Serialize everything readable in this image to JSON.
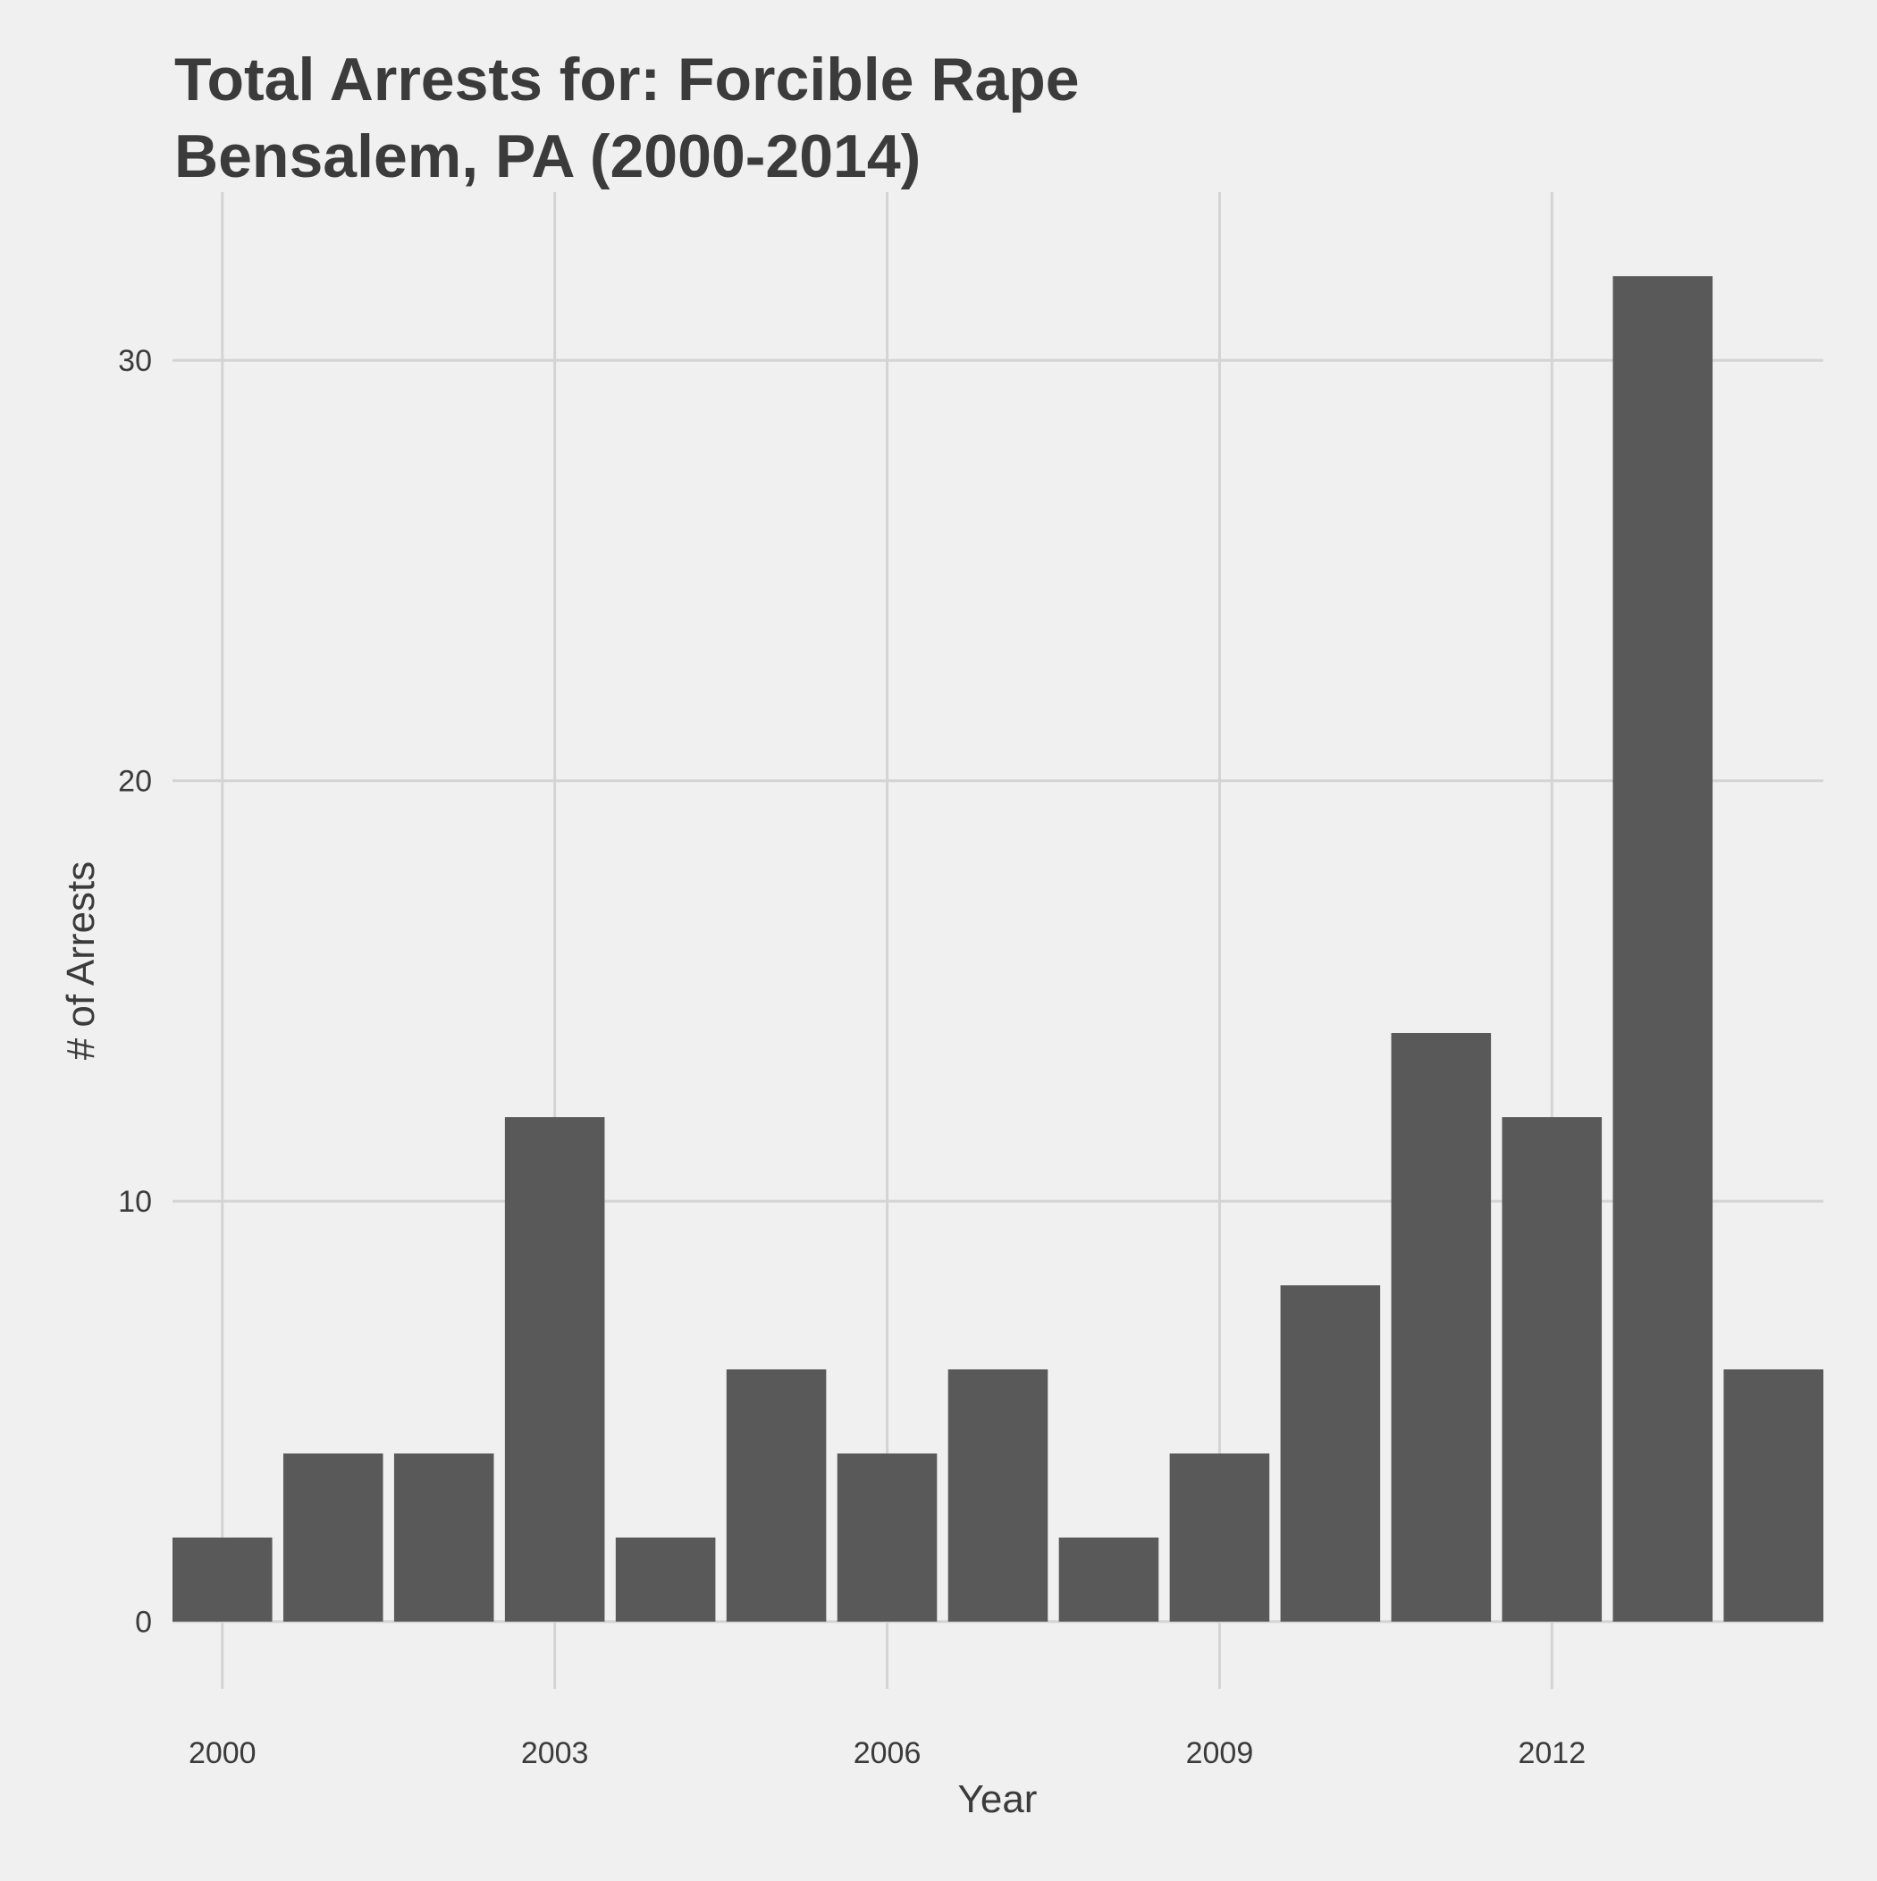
{
  "chart_data": {
    "type": "bar",
    "title": [
      "Total Arrests for: Forcible Rape",
      "Bensalem, PA (2000-2014)"
    ],
    "xlabel": "Year",
    "ylabel": "# of Arrests",
    "x": [
      2000,
      2001,
      2002,
      2003,
      2004,
      2005,
      2006,
      2007,
      2008,
      2009,
      2010,
      2011,
      2012,
      2013,
      2014
    ],
    "values": [
      2,
      4,
      4,
      12,
      2,
      6,
      4,
      6,
      2,
      4,
      8,
      14,
      12,
      32,
      6
    ],
    "xticks": [
      "2000",
      "2003",
      "2006",
      "2009",
      "2012"
    ],
    "yticks": [
      "0",
      "10",
      "20",
      "30"
    ],
    "xlim": [
      1999.55,
      2014.45
    ],
    "ylim": [
      -1.6,
      34
    ],
    "grid": true,
    "bar_color": "#595959",
    "background_color": "#f0f0f0",
    "grid_color": "#d4d4d4",
    "text_color": "#3b3b3b"
  }
}
